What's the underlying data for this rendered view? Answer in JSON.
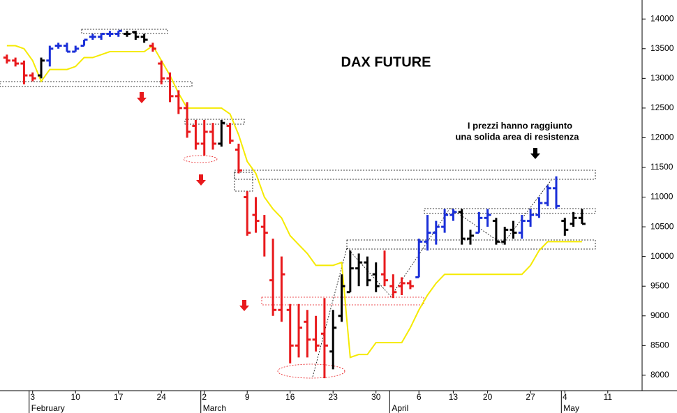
{
  "chart_data": {
    "type": "ohlc",
    "title": "DAX FUTURE",
    "annotation": [
      "I prezzi hanno raggiunto",
      "una solida area di resistenza"
    ],
    "xlim": [
      -0.8,
      74
    ],
    "xticks": [
      {
        "value": 3,
        "label": "3"
      },
      {
        "value": 8,
        "label": "10"
      },
      {
        "value": 13,
        "label": "17"
      },
      {
        "value": 18,
        "label": "24"
      },
      {
        "value": 23,
        "label": "2"
      },
      {
        "value": 28,
        "label": "9"
      },
      {
        "value": 33,
        "label": "16"
      },
      {
        "value": 38,
        "label": "23"
      },
      {
        "value": 43,
        "label": "30"
      },
      {
        "value": 48,
        "label": "6"
      },
      {
        "value": 52,
        "label": "13"
      },
      {
        "value": 56,
        "label": "20"
      },
      {
        "value": 61,
        "label": "27"
      },
      {
        "value": 65,
        "label": "4"
      },
      {
        "value": 70,
        "label": "11"
      }
    ],
    "month_ticks": [
      {
        "value": 3,
        "label": "February"
      },
      {
        "value": 23,
        "label": "March"
      },
      {
        "value": 45,
        "label": "April"
      },
      {
        "value": 65,
        "label": "May"
      }
    ],
    "ylim": [
      7740,
      14320
    ],
    "yticks": [
      8000,
      8500,
      9000,
      9500,
      10000,
      10500,
      11000,
      11500,
      12000,
      12500,
      13000,
      13500,
      14000
    ],
    "bars": {
      "x": [
        0,
        1,
        2,
        3,
        4,
        5,
        6,
        7,
        8,
        9,
        10,
        11,
        12,
        13,
        14,
        15,
        16,
        17,
        18,
        19,
        20,
        21,
        22,
        23,
        24,
        25,
        26,
        27,
        28,
        29,
        30,
        31,
        32,
        33,
        34,
        35,
        36,
        37,
        38,
        39,
        40,
        41,
        42,
        43,
        44,
        45,
        46,
        47,
        48,
        49,
        50,
        51,
        52,
        53,
        54,
        55,
        56,
        57,
        58,
        59,
        60,
        61,
        62,
        63,
        64,
        65,
        66,
        67
      ],
      "open": [
        13350,
        13300,
        13250,
        13050,
        13050,
        13300,
        13550,
        13550,
        13450,
        13550,
        13700,
        13700,
        13750,
        13750,
        13750,
        13780,
        13700,
        13550,
        13250,
        13000,
        12700,
        12500,
        12200,
        11900,
        12100,
        11900,
        12200,
        11800,
        11000,
        10700,
        10500,
        9600,
        9100,
        9100,
        8500,
        8900,
        8600,
        8700,
        8400,
        9000,
        9400,
        9800,
        9900,
        9700,
        9700,
        9500,
        9500,
        9550,
        9650,
        10250,
        10400,
        10500,
        10700,
        10750,
        10300,
        10400,
        10650,
        10600,
        10250,
        10450,
        10400,
        10600,
        10700,
        10900,
        11150,
        10600,
        10550,
        10650
      ],
      "high": [
        13400,
        13350,
        13300,
        13100,
        13350,
        13550,
        13600,
        13600,
        13550,
        13650,
        13750,
        13750,
        13800,
        13800,
        13800,
        13800,
        13750,
        13600,
        13300,
        13100,
        12800,
        12600,
        12300,
        12300,
        12250,
        12300,
        12250,
        11900,
        11100,
        11000,
        10700,
        10300,
        10000,
        9200,
        9200,
        9100,
        9000,
        9300,
        9100,
        9700,
        10100,
        10050,
        10000,
        9900,
        10100,
        9700,
        9650,
        9600,
        10300,
        10700,
        10600,
        10800,
        10800,
        10800,
        10450,
        10750,
        10800,
        10650,
        10500,
        10600,
        10700,
        10800,
        11000,
        11200,
        11350,
        10650,
        10750,
        10800
      ],
      "low": [
        13250,
        13200,
        12900,
        12950,
        13000,
        13200,
        13500,
        13450,
        13450,
        13550,
        13650,
        13650,
        13700,
        13700,
        13700,
        13650,
        13600,
        13450,
        12900,
        12600,
        12400,
        12000,
        11800,
        11700,
        11800,
        11850,
        11900,
        11400,
        10350,
        10400,
        10000,
        9000,
        8900,
        8200,
        8300,
        8300,
        8400,
        7950,
        8100,
        8900,
        9400,
        9500,
        9500,
        9400,
        9500,
        9300,
        9350,
        9450,
        9650,
        10100,
        10200,
        10400,
        10600,
        10200,
        10200,
        10400,
        10500,
        10200,
        10200,
        10300,
        10300,
        10500,
        10650,
        10850,
        10800,
        10350,
        10500,
        10550
      ],
      "close": [
        13300,
        13250,
        13050,
        13000,
        13300,
        13500,
        13550,
        13450,
        13500,
        13650,
        13700,
        13750,
        13750,
        13800,
        13750,
        13700,
        13650,
        13500,
        13000,
        12700,
        12500,
        12100,
        11900,
        12100,
        11900,
        12250,
        11950,
        11450,
        10400,
        10600,
        10400,
        9100,
        9700,
        8500,
        8800,
        8600,
        8500,
        8500,
        8800,
        9500,
        9800,
        9900,
        9600,
        9500,
        9600,
        9400,
        9550,
        9500,
        10250,
        10400,
        10500,
        10700,
        10750,
        10300,
        10350,
        10650,
        10700,
        10250,
        10450,
        10400,
        10600,
        10700,
        10900,
        11150,
        10850,
        10450,
        10650,
        10550
      ],
      "colors": [
        "#e8191c",
        "#e8191c",
        "#e8191c",
        "#e8191c",
        "#000000",
        "#1a2fd8",
        "#1a2fd8",
        "#1a2fd8",
        "#1a2fd8",
        "#1a2fd8",
        "#1a2fd8",
        "#1a2fd8",
        "#1a2fd8",
        "#1a2fd8",
        "#000000",
        "#000000",
        "#000000",
        "#e8191c",
        "#e8191c",
        "#e8191c",
        "#e8191c",
        "#e8191c",
        "#e8191c",
        "#e8191c",
        "#e8191c",
        "#000000",
        "#e8191c",
        "#e8191c",
        "#e8191c",
        "#e8191c",
        "#e8191c",
        "#e8191c",
        "#e8191c",
        "#e8191c",
        "#e8191c",
        "#e8191c",
        "#e8191c",
        "#e8191c",
        "#000000",
        "#000000",
        "#000000",
        "#000000",
        "#000000",
        "#000000",
        "#e8191c",
        "#e8191c",
        "#e8191c",
        "#e8191c",
        "#1a2fd8",
        "#1a2fd8",
        "#1a2fd8",
        "#1a2fd8",
        "#1a2fd8",
        "#000000",
        "#000000",
        "#1a2fd8",
        "#1a2fd8",
        "#000000",
        "#000000",
        "#000000",
        "#1a2fd8",
        "#1a2fd8",
        "#1a2fd8",
        "#1a2fd8",
        "#1a2fd8",
        "#000000",
        "#000000",
        "#000000"
      ]
    },
    "line": {
      "color": "#f5ea00",
      "values": [
        13550,
        13550,
        13500,
        13300,
        12950,
        13150,
        13150,
        13150,
        13200,
        13350,
        13350,
        13400,
        13450,
        13450,
        13450,
        13450,
        13450,
        13550,
        13300,
        13050,
        12750,
        12500,
        12500,
        12500,
        12500,
        12500,
        12400,
        12050,
        11600,
        11400,
        11000,
        10800,
        10650,
        10350,
        10200,
        10050,
        9850,
        9850,
        9850,
        9900,
        8300,
        8350,
        8350,
        8550,
        8550,
        8550,
        8550,
        8800,
        9100,
        9350,
        9550,
        9700,
        9700,
        9700,
        9700,
        9700,
        9700,
        9700,
        9700,
        9700,
        9700,
        9850,
        10100,
        10250,
        10250,
        10250,
        10250,
        10250
      ]
    }
  }
}
